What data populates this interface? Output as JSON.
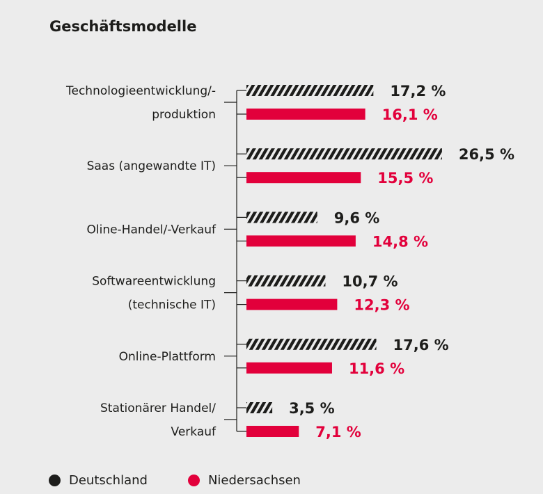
{
  "chart_data": {
    "type": "bar",
    "orientation": "horizontal",
    "title": "Geschäftsmodelle",
    "categories": [
      [
        "Technologieentwicklung/-",
        "produktion"
      ],
      [
        "Saas (angewandte IT)"
      ],
      [
        "Oline-Handel/-Verkauf"
      ],
      [
        "Softwareentwicklung",
        "(technische IT)"
      ],
      [
        "Online-Plattform"
      ],
      [
        "Stationärer Handel/",
        "Verkauf"
      ]
    ],
    "series": [
      {
        "name": "Deutschland",
        "color": "#1d1d1b",
        "pattern": "hatched",
        "values": [
          17.2,
          26.5,
          9.6,
          10.7,
          17.6,
          3.5
        ],
        "labels": [
          "17,2 %",
          "26,5 %",
          "9,6 %",
          "10,7 %",
          "17,6 %",
          "3,5 %"
        ]
      },
      {
        "name": "Niedersachsen",
        "color": "#e2003b",
        "pattern": "solid",
        "values": [
          16.1,
          15.5,
          14.8,
          12.3,
          11.6,
          7.1
        ],
        "labels": [
          "16,1 %",
          "15,5 %",
          "14,8 %",
          "12,3 %",
          "11,6 %",
          "7,1 %"
        ]
      }
    ],
    "unit": "%",
    "grid": false,
    "legend_position": "bottom-left"
  },
  "colors": {
    "background": "#ececec",
    "text": "#1d1d1b",
    "accent": "#e2003b"
  }
}
